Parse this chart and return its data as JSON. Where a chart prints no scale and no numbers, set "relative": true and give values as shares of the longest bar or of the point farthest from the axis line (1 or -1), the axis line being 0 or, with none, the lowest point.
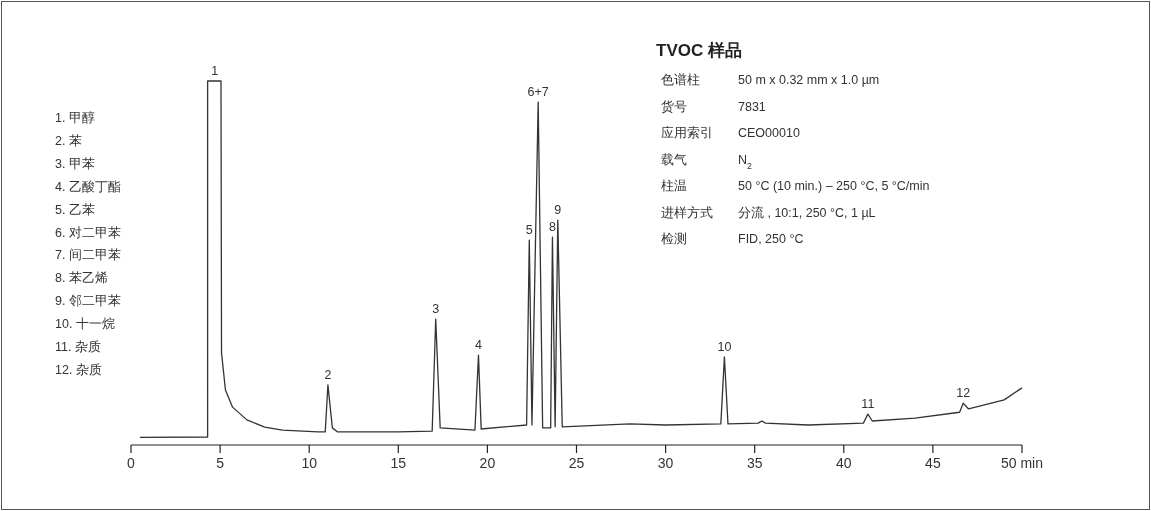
{
  "chart_data": {
    "type": "line",
    "relative": true,
    "title": "TVOC 样品",
    "color": "#333333",
    "xlim": [
      0,
      50
    ],
    "xticks": [
      0,
      5,
      10,
      15,
      20,
      25,
      30,
      35,
      40,
      45,
      {
        "value": 50,
        "label": "50 min"
      }
    ],
    "x": [
      0.5,
      4.3,
      4.3,
      5.05,
      5.08,
      5.3,
      5.7,
      6.5,
      7.5,
      8.5,
      10.5,
      10.9,
      11.05,
      11.3,
      11.6,
      15,
      16.9,
      17.1,
      17.35,
      19.3,
      19.5,
      19.65,
      22.2,
      22.35,
      22.5,
      22.85,
      23.1,
      23.55,
      23.65,
      23.8,
      23.95,
      24.2,
      28,
      30,
      33.1,
      33.3,
      33.5,
      35.2,
      35.4,
      35.6,
      38,
      41.1,
      41.35,
      41.6,
      44,
      46.5,
      46.7,
      47,
      49,
      50
    ],
    "values": [
      0.021,
      0.022,
      1.0,
      1.0,
      0.253,
      0.151,
      0.104,
      0.069,
      0.049,
      0.041,
      0.036,
      0.036,
      0.165,
      0.047,
      0.036,
      0.036,
      0.038,
      0.346,
      0.047,
      0.041,
      0.247,
      0.044,
      0.055,
      0.563,
      0.055,
      0.942,
      0.047,
      0.047,
      0.571,
      0.05,
      0.618,
      0.05,
      0.058,
      0.055,
      0.058,
      0.242,
      0.058,
      0.06,
      0.066,
      0.06,
      0.055,
      0.06,
      0.085,
      0.066,
      0.074,
      0.09,
      0.115,
      0.099,
      0.124,
      0.157
    ],
    "annotations": [
      "1.  甲醇",
      "2.  苯",
      "3.  甲苯",
      "4.  乙酸丁酯",
      "5.  乙苯",
      "6.  对二甲苯",
      "7.  间二甲苯",
      "8.  苯乙烯",
      "9.  邻二甲苯",
      "10. 十一烷",
      "11. 杂质",
      "12. 杂质",
      "色谱柱",
      "50 m x 0.32 mm x 1.0 µm",
      "货号",
      "7831",
      "应用索引",
      "CEO00010",
      "载气",
      "N$_{2}$",
      "柱温",
      "50 °C (10 min.) – 250 °C, 5 °C/min",
      "进样方式",
      "分流 , 10:1,  250 °C, 1 µL",
      "检测",
      "FID, 250 °C",
      {
        "text": "1",
        "x": 4.7,
        "y": 1.0
      },
      {
        "text": "2",
        "x": 11.05,
        "y": 0.165
      },
      {
        "text": "3",
        "x": 17.1,
        "y": 0.346
      },
      {
        "text": "4",
        "x": 19.5,
        "y": 0.247
      },
      {
        "text": "5",
        "x": 22.35,
        "y": 0.563
      },
      {
        "text": "6+7",
        "x": 22.85,
        "y": 0.942
      },
      {
        "text": "8",
        "x": 23.65,
        "y": 0.571
      },
      {
        "text": "9",
        "x": 23.95,
        "y": 0.618
      },
      {
        "text": "10",
        "x": 33.3,
        "y": 0.242
      },
      {
        "text": "11",
        "x": 41.35,
        "y": 0.085
      },
      {
        "text": "12",
        "x": 46.7,
        "y": 0.115
      }
    ]
  }
}
